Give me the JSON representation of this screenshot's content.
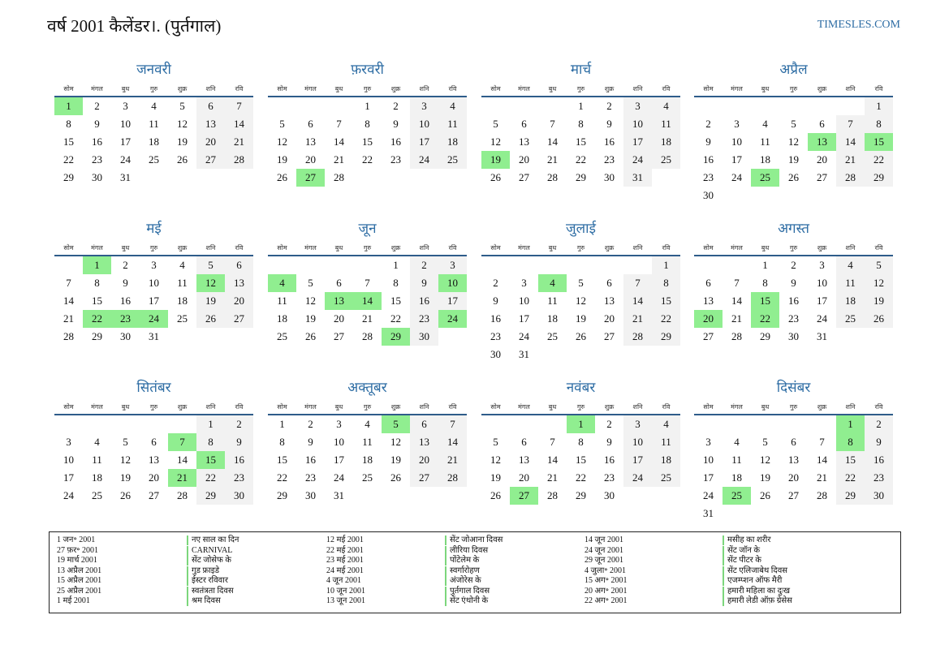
{
  "header": {
    "title": "वर्ष 2001 कैलेंडर।. (पुर्तगाल)",
    "site": "TIMESLES.COM"
  },
  "weekdays": [
    "सोम",
    "मंगल",
    "बुध",
    "गुरु",
    "शुक्र",
    "शनि",
    "रवि"
  ],
  "months": [
    {
      "name": "जनवरी",
      "highlights": [
        1
      ],
      "weeks": [
        [
          1,
          2,
          3,
          4,
          5,
          6,
          7
        ],
        [
          8,
          9,
          10,
          11,
          12,
          13,
          14
        ],
        [
          15,
          16,
          17,
          18,
          19,
          20,
          21
        ],
        [
          22,
          23,
          24,
          25,
          26,
          27,
          28
        ],
        [
          29,
          30,
          31,
          null,
          null,
          null,
          null
        ]
      ]
    },
    {
      "name": "फ़रवरी",
      "highlights": [
        27
      ],
      "weeks": [
        [
          null,
          null,
          null,
          1,
          2,
          3,
          4
        ],
        [
          5,
          6,
          7,
          8,
          9,
          10,
          11
        ],
        [
          12,
          13,
          14,
          15,
          16,
          17,
          18
        ],
        [
          19,
          20,
          21,
          22,
          23,
          24,
          25
        ],
        [
          26,
          27,
          28,
          null,
          null,
          null,
          null
        ]
      ]
    },
    {
      "name": "मार्च",
      "highlights": [
        19
      ],
      "weeks": [
        [
          null,
          null,
          null,
          1,
          2,
          3,
          4
        ],
        [
          5,
          6,
          7,
          8,
          9,
          10,
          11
        ],
        [
          12,
          13,
          14,
          15,
          16,
          17,
          18
        ],
        [
          19,
          20,
          21,
          22,
          23,
          24,
          25
        ],
        [
          26,
          27,
          28,
          29,
          30,
          31,
          null
        ]
      ]
    },
    {
      "name": "अप्रैल",
      "highlights": [
        13,
        15,
        25
      ],
      "weeks": [
        [
          null,
          null,
          null,
          null,
          null,
          null,
          1
        ],
        [
          2,
          3,
          4,
          5,
          6,
          7,
          8
        ],
        [
          9,
          10,
          11,
          12,
          13,
          14,
          15
        ],
        [
          16,
          17,
          18,
          19,
          20,
          21,
          22
        ],
        [
          23,
          24,
          25,
          26,
          27,
          28,
          29
        ],
        [
          30,
          null,
          null,
          null,
          null,
          null,
          null
        ]
      ]
    },
    {
      "name": "मई",
      "highlights": [
        1,
        12,
        22,
        23,
        24
      ],
      "weeks": [
        [
          null,
          1,
          2,
          3,
          4,
          5,
          6
        ],
        [
          7,
          8,
          9,
          10,
          11,
          12,
          13
        ],
        [
          14,
          15,
          16,
          17,
          18,
          19,
          20
        ],
        [
          21,
          22,
          23,
          24,
          25,
          26,
          27
        ],
        [
          28,
          29,
          30,
          31,
          null,
          null,
          null
        ]
      ]
    },
    {
      "name": "जून",
      "highlights": [
        4,
        10,
        13,
        14,
        24,
        29
      ],
      "weeks": [
        [
          null,
          null,
          null,
          null,
          1,
          2,
          3
        ],
        [
          4,
          5,
          6,
          7,
          8,
          9,
          10
        ],
        [
          11,
          12,
          13,
          14,
          15,
          16,
          17
        ],
        [
          18,
          19,
          20,
          21,
          22,
          23,
          24
        ],
        [
          25,
          26,
          27,
          28,
          29,
          30,
          null
        ]
      ]
    },
    {
      "name": "जुलाई",
      "highlights": [
        4
      ],
      "weeks": [
        [
          null,
          null,
          null,
          null,
          null,
          null,
          1
        ],
        [
          2,
          3,
          4,
          5,
          6,
          7,
          8
        ],
        [
          9,
          10,
          11,
          12,
          13,
          14,
          15
        ],
        [
          16,
          17,
          18,
          19,
          20,
          21,
          22
        ],
        [
          23,
          24,
          25,
          26,
          27,
          28,
          29
        ],
        [
          30,
          31,
          null,
          null,
          null,
          null,
          null
        ]
      ]
    },
    {
      "name": "अगस्त",
      "highlights": [
        15,
        20,
        22
      ],
      "weeks": [
        [
          null,
          null,
          1,
          2,
          3,
          4,
          5
        ],
        [
          6,
          7,
          8,
          9,
          10,
          11,
          12
        ],
        [
          13,
          14,
          15,
          16,
          17,
          18,
          19
        ],
        [
          20,
          21,
          22,
          23,
          24,
          25,
          26
        ],
        [
          27,
          28,
          29,
          30,
          31,
          null,
          null
        ]
      ]
    },
    {
      "name": "सितंबर",
      "highlights": [
        7,
        15,
        21
      ],
      "weeks": [
        [
          null,
          null,
          null,
          null,
          null,
          1,
          2
        ],
        [
          3,
          4,
          5,
          6,
          7,
          8,
          9
        ],
        [
          10,
          11,
          12,
          13,
          14,
          15,
          16
        ],
        [
          17,
          18,
          19,
          20,
          21,
          22,
          23
        ],
        [
          24,
          25,
          26,
          27,
          28,
          29,
          30
        ]
      ]
    },
    {
      "name": "अक्तूबर",
      "highlights": [
        5
      ],
      "weeks": [
        [
          1,
          2,
          3,
          4,
          5,
          6,
          7
        ],
        [
          8,
          9,
          10,
          11,
          12,
          13,
          14
        ],
        [
          15,
          16,
          17,
          18,
          19,
          20,
          21
        ],
        [
          22,
          23,
          24,
          25,
          26,
          27,
          28
        ],
        [
          29,
          30,
          31,
          null,
          null,
          null,
          null
        ]
      ]
    },
    {
      "name": "नवंबर",
      "highlights": [
        1,
        27
      ],
      "weeks": [
        [
          null,
          null,
          null,
          1,
          2,
          3,
          4
        ],
        [
          5,
          6,
          7,
          8,
          9,
          10,
          11
        ],
        [
          12,
          13,
          14,
          15,
          16,
          17,
          18
        ],
        [
          19,
          20,
          21,
          22,
          23,
          24,
          25
        ],
        [
          26,
          27,
          28,
          29,
          30,
          null,
          null
        ]
      ]
    },
    {
      "name": "दिसंबर",
      "highlights": [
        1,
        8,
        25
      ],
      "weeks": [
        [
          null,
          null,
          null,
          null,
          null,
          1,
          2
        ],
        [
          3,
          4,
          5,
          6,
          7,
          8,
          9
        ],
        [
          10,
          11,
          12,
          13,
          14,
          15,
          16
        ],
        [
          17,
          18,
          19,
          20,
          21,
          22,
          23
        ],
        [
          24,
          25,
          26,
          27,
          28,
          29,
          30
        ],
        [
          31,
          null,
          null,
          null,
          null,
          null,
          null
        ]
      ]
    }
  ],
  "holidays": [
    {
      "date": "1 जन॰ 2001",
      "name": "नए साल का दिन"
    },
    {
      "date": "27 फ़र॰ 2001",
      "name": "CARNIVAL"
    },
    {
      "date": "19 मार्च 2001",
      "name": "सेंट जोसेफ के"
    },
    {
      "date": "13 अप्रैल 2001",
      "name": "गुड फ्राइडे"
    },
    {
      "date": "15 अप्रैल 2001",
      "name": "ईस्टर रविवार"
    },
    {
      "date": "25 अप्रैल 2001",
      "name": "स्वतंत्रता दिवस"
    },
    {
      "date": "1 मई 2001",
      "name": "श्रम दिवस"
    },
    {
      "date": "12 मई 2001",
      "name": "सेंट जोआना दिवस"
    },
    {
      "date": "22 मई 2001",
      "name": "लीरिया दिवस"
    },
    {
      "date": "23 मई 2001",
      "name": "पोंटेलेम के"
    },
    {
      "date": "24 मई 2001",
      "name": "स्वर्गारोहण"
    },
    {
      "date": "4 जून 2001",
      "name": "अंजोरेस के"
    },
    {
      "date": "10 जून 2001",
      "name": "पुर्तगाल दिवस"
    },
    {
      "date": "13 जून 2001",
      "name": "सेंट एंथोनी के"
    },
    {
      "date": "14 जून 2001",
      "name": "मसीह का शरीर"
    },
    {
      "date": "24 जून 2001",
      "name": "सेंट जॉन के"
    },
    {
      "date": "29 जून 2001",
      "name": "सेंट पीटर के"
    },
    {
      "date": "4 जुला॰ 2001",
      "name": "सेंट एलिजाबेथ दिवस"
    },
    {
      "date": "15 अग॰ 2001",
      "name": "एजम्प्शन ऑफ मैरी"
    },
    {
      "date": "20 अग॰ 2001",
      "name": "हमारी महिला का दुःख"
    },
    {
      "date": "22 अग॰ 2001",
      "name": "हमारी लेडी ऑफ़ ग्रेसेस"
    }
  ]
}
